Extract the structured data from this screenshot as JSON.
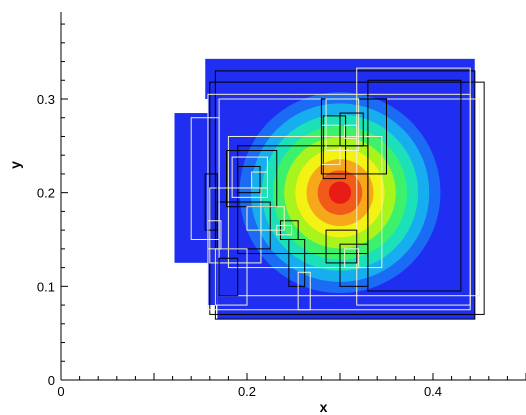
{
  "chart_data": {
    "type": "heatmap",
    "title": "",
    "xlabel": "x",
    "ylabel": "y",
    "xlim": [
      0,
      0.5
    ],
    "ylim": [
      0,
      0.385
    ],
    "x_ticks": [
      "0",
      "0.2",
      "0.4"
    ],
    "y_ticks": [
      "0",
      "0.1",
      "0.2",
      "0.3"
    ],
    "x_tick_values": [
      0,
      0.2,
      0.4
    ],
    "y_tick_values": [
      0,
      0.1,
      0.2,
      0.3
    ],
    "grid": false,
    "legend": "none",
    "field": {
      "description_center": [
        0.3,
        0.2
      ],
      "max_radius": 0.12,
      "levels": 9,
      "background_color": "#1f2ef0",
      "colors": [
        "#1f2ef0",
        "#1a6cf5",
        "#17aef0",
        "#1be0b8",
        "#3df26a",
        "#a8f51e",
        "#f2f214",
        "#f7a81a",
        "#f25a1a",
        "#e81c14"
      ]
    },
    "domain_pieces": [
      {
        "x": [
          0.155,
          0.445
        ],
        "y": [
          0.3,
          0.343
        ]
      },
      {
        "x": [
          0.168,
          0.445
        ],
        "y": [
          0.065,
          0.3
        ]
      },
      {
        "x": [
          0.122,
          0.168
        ],
        "y": [
          0.125,
          0.285
        ]
      },
      {
        "x": [
          0.158,
          0.168
        ],
        "y": [
          0.08,
          0.31
        ]
      }
    ],
    "mesh_outline_color_dark": "#000000",
    "mesh_outline_color_light": "#f2f2c8"
  }
}
